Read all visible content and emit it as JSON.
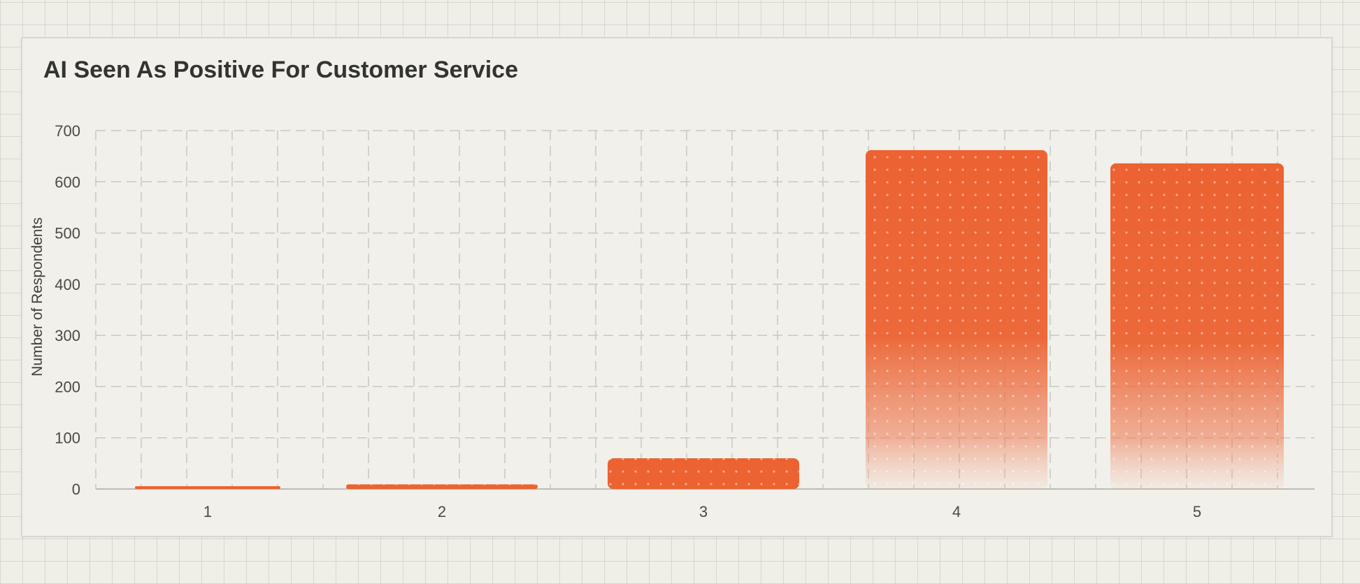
{
  "chart_data": {
    "type": "bar",
    "title": "AI Seen As Positive For Customer Service",
    "xlabel": "",
    "ylabel": "Number of Respondents",
    "categories": [
      "1",
      "2",
      "3",
      "4",
      "5"
    ],
    "values": [
      5,
      9,
      60,
      662,
      636
    ],
    "ylim": [
      0,
      700
    ],
    "yticks": [
      0,
      100,
      200,
      300,
      400,
      500,
      600,
      700
    ],
    "grid": true,
    "legend": "none",
    "colors": {
      "bar": "#ec6231",
      "grid": "#c9c8c0",
      "axis": "#bdbcb4",
      "text": "#4a4a46",
      "title": "#333330"
    }
  }
}
